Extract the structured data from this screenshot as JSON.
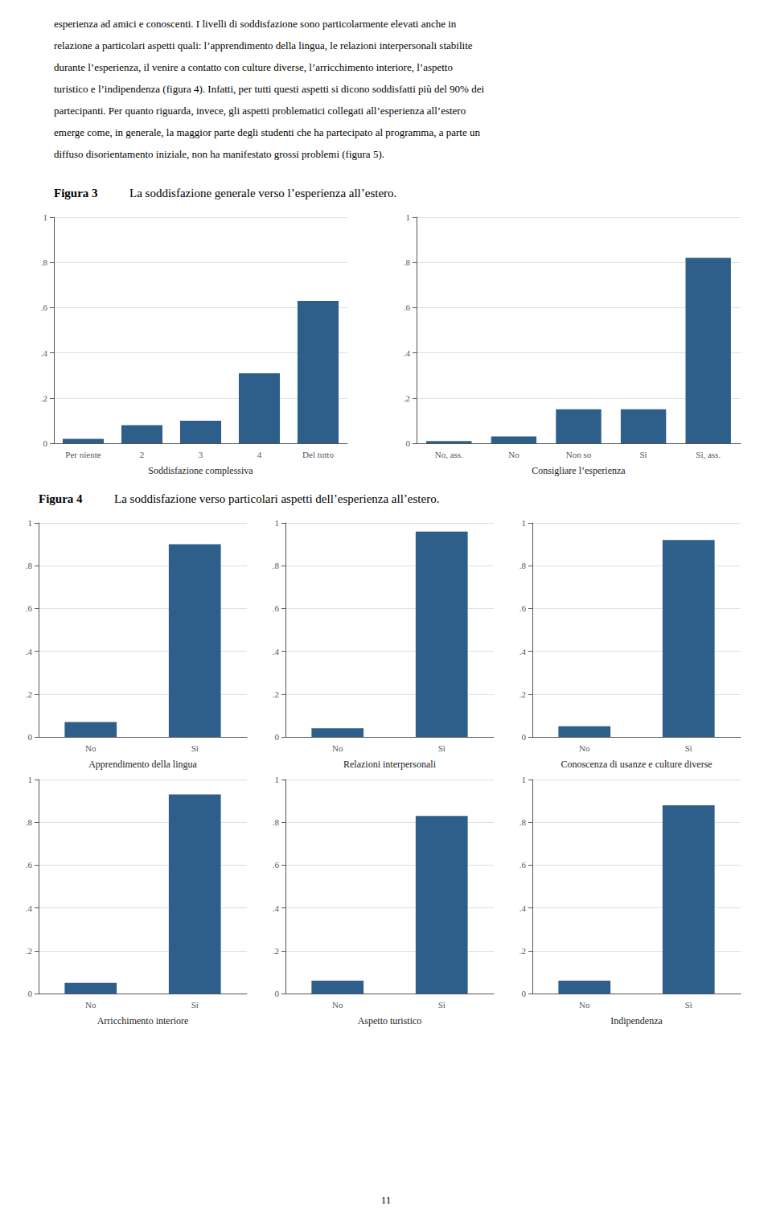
{
  "chart_data": [
    {
      "type": "bar",
      "title": "Figura 3",
      "subtitle": "La soddisfazione generale verso l’esperienza all’estero.",
      "annotations": [
        "esperienza ad amici e conoscenti. I livelli di soddisfazione sono particolarmente elevati anche in",
        "relazione a particolari aspetti quali: l’apprendimento della lingua, le relazioni interpersonali stabilite",
        "durante l’esperienza, il venire a contatto con culture diverse, l’arricchimento interiore, l’aspetto",
        "turistico e l’indipendenza (figura 4). Infatti, per tutti questi aspetti si dicono soddisfatti più del 90% dei",
        "partecipanti. Per quanto riguarda, invece, gli aspetti problematici collegati all’esperienza all’estero",
        "emerge come, in generale, la maggior parte degli studenti che ha partecipato al programma, a parte un",
        "diffuso disorientamento iniziale, non ha manifestato grossi problemi (figura 5)."
      ],
      "categories": [
        "Per niente",
        "2",
        "3",
        "4",
        "Del tutto"
      ],
      "values": [
        0.02,
        0.08,
        0.1,
        0.31,
        0.63
      ],
      "xlabel": "Soddisfazione complessiva",
      "color": "#2e5f8a",
      "ylim": [
        0,
        1
      ],
      "yticks": [
        0,
        {
          "value": 0.2,
          "label": ".2"
        },
        {
          "value": 0.4,
          "label": ".4"
        },
        {
          "value": 0.6,
          "label": ".6"
        },
        {
          "value": 0.8,
          "label": ".8"
        },
        1
      ],
      "grid": true
    },
    {
      "type": "bar",
      "categories": [
        "No, ass.",
        "No",
        "Non so",
        "Sì",
        "Sì, ass."
      ],
      "values": [
        0.01,
        0.03,
        0.15,
        0.15,
        0.82
      ],
      "xlabel": "Consigliare l’esperienza",
      "color": "#2e5f8a",
      "ylim": [
        0,
        1
      ],
      "yticks": [
        0,
        {
          "value": 0.2,
          "label": ".2"
        },
        {
          "value": 0.4,
          "label": ".4"
        },
        {
          "value": 0.6,
          "label": ".6"
        },
        {
          "value": 0.8,
          "label": ".8"
        },
        1
      ],
      "grid": true
    },
    {
      "type": "bar",
      "title": "Figura 4",
      "subtitle": "La soddisfazione verso particolari aspetti dell’esperienza all’estero.",
      "categories": [
        "No",
        "Sì"
      ],
      "values": [
        0.07,
        0.9
      ],
      "xlabel": "Apprendimento della lingua",
      "color": "#2e5f8a",
      "ylim": [
        0,
        1
      ],
      "yticks": [
        0,
        {
          "value": 0.2,
          "label": ".2"
        },
        {
          "value": 0.4,
          "label": ".4"
        },
        {
          "value": 0.6,
          "label": ".6"
        },
        {
          "value": 0.8,
          "label": ".8"
        },
        1
      ],
      "grid": true
    },
    {
      "type": "bar",
      "categories": [
        "No",
        "Sì"
      ],
      "values": [
        0.04,
        0.96
      ],
      "xlabel": "Relazioni interpersonali",
      "color": "#2e5f8a",
      "ylim": [
        0,
        1
      ],
      "yticks": [
        0,
        {
          "value": 0.2,
          "label": ".2"
        },
        {
          "value": 0.4,
          "label": ".4"
        },
        {
          "value": 0.6,
          "label": ".6"
        },
        {
          "value": 0.8,
          "label": ".8"
        },
        1
      ],
      "grid": true
    },
    {
      "type": "bar",
      "categories": [
        "No",
        "Sì"
      ],
      "values": [
        0.05,
        0.92
      ],
      "xlabel": "Conoscenza di usanze e culture diverse",
      "color": "#2e5f8a",
      "ylim": [
        0,
        1
      ],
      "yticks": [
        0,
        {
          "value": 0.2,
          "label": ".2"
        },
        {
          "value": 0.4,
          "label": ".4"
        },
        {
          "value": 0.6,
          "label": ".6"
        },
        {
          "value": 0.8,
          "label": ".8"
        },
        1
      ],
      "grid": true
    },
    {
      "type": "bar",
      "categories": [
        "No",
        "Sì"
      ],
      "values": [
        0.05,
        0.93
      ],
      "xlabel": "Arricchimento interiore",
      "color": "#2e5f8a",
      "ylim": [
        0,
        1
      ],
      "yticks": [
        0,
        {
          "value": 0.2,
          "label": ".2"
        },
        {
          "value": 0.4,
          "label": ".4"
        },
        {
          "value": 0.6,
          "label": ".6"
        },
        {
          "value": 0.8,
          "label": ".8"
        },
        1
      ],
      "grid": true
    },
    {
      "type": "bar",
      "categories": [
        "No",
        "Sì"
      ],
      "values": [
        0.06,
        0.83
      ],
      "xlabel": "Aspetto turistico",
      "color": "#2e5f8a",
      "ylim": [
        0,
        1
      ],
      "yticks": [
        0,
        {
          "value": 0.2,
          "label": ".2"
        },
        {
          "value": 0.4,
          "label": ".4"
        },
        {
          "value": 0.6,
          "label": ".6"
        },
        {
          "value": 0.8,
          "label": ".8"
        },
        1
      ],
      "grid": true
    },
    {
      "type": "bar",
      "annotations": [
        "11"
      ],
      "categories": [
        "No",
        "Sì"
      ],
      "values": [
        0.06,
        0.88
      ],
      "xlabel": "Indipendenza",
      "color": "#2e5f8a",
      "ylim": [
        0,
        1
      ],
      "yticks": [
        0,
        {
          "value": 0.2,
          "label": ".2"
        },
        {
          "value": 0.4,
          "label": ".4"
        },
        {
          "value": 0.6,
          "label": ".6"
        },
        {
          "value": 0.8,
          "label": ".8"
        },
        1
      ],
      "grid": true
    }
  ]
}
